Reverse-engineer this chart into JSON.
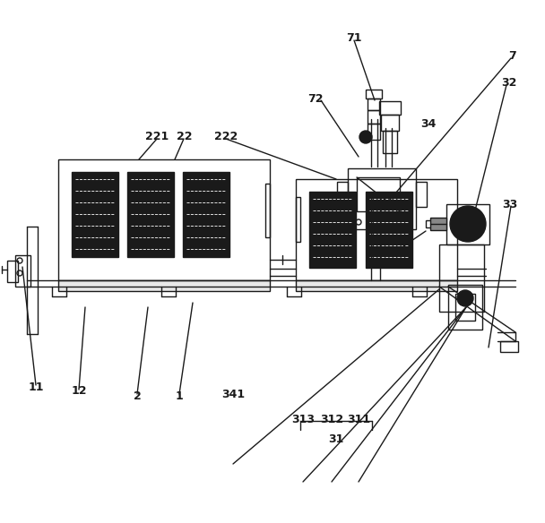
{
  "bg_color": "#ffffff",
  "line_color": "#1a1a1a",
  "lw": 1.0,
  "fig_width": 6.08,
  "fig_height": 5.84
}
